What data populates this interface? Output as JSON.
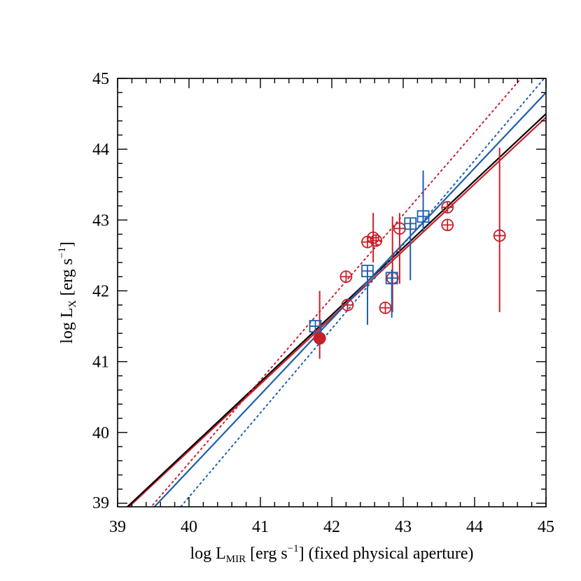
{
  "chart_data": {
    "type": "scatter",
    "xlabel": {
      "pre": "log L",
      "sub": "MIR",
      "mid": " [erg s",
      "sup": "−1",
      "post": "] (fixed physical aperture)"
    },
    "ylabel": {
      "pre": "log L",
      "sub": "X",
      "mid": " [erg s",
      "sup": "−1",
      "post": "]"
    },
    "xlim": [
      39,
      45
    ],
    "ylim": [
      38.95,
      45
    ],
    "xticks": [
      "39",
      "40",
      "41",
      "42",
      "43",
      "44",
      "45"
    ],
    "yticks": [
      "39",
      "40",
      "41",
      "42",
      "43",
      "44",
      "45"
    ],
    "grid": false,
    "colors": {
      "red": "#c8202a",
      "blue": "#1f5faa",
      "black": "#000000"
    },
    "series": [
      {
        "marker": "circle-plus",
        "color": "red",
        "points": [
          {
            "x": 42.2,
            "y": 42.2
          },
          {
            "x": 42.22,
            "y": 41.8
          },
          {
            "x": 42.5,
            "y": 42.69
          },
          {
            "x": 42.58,
            "y": 42.75,
            "yerr": [
              42.4,
              43.1
            ]
          },
          {
            "x": 42.62,
            "y": 42.71
          },
          {
            "x": 42.75,
            "y": 41.76
          },
          {
            "x": 42.85,
            "y": 42.18,
            "yerr": [
              41.7,
              43.05
            ]
          },
          {
            "x": 42.95,
            "y": 42.88,
            "yerr": [
              42.1,
              43.1
            ]
          },
          {
            "x": 43.62,
            "y": 43.18
          },
          {
            "x": 43.62,
            "y": 42.93
          },
          {
            "x": 44.35,
            "y": 42.78,
            "yerr": [
              41.7,
              44.02
            ]
          }
        ]
      },
      {
        "marker": "filled-circle",
        "color": "red",
        "points": [
          {
            "x": 41.83,
            "y": 41.33,
            "yerr": [
              41.04,
              42.0
            ]
          }
        ]
      },
      {
        "marker": "square-plus",
        "color": "blue",
        "points": [
          {
            "x": 41.77,
            "y": 41.5
          },
          {
            "x": 42.5,
            "y": 42.28,
            "yerr": [
              41.52,
              42.3
            ]
          },
          {
            "x": 42.84,
            "y": 42.18,
            "yerr": [
              41.62,
              42.3
            ]
          },
          {
            "x": 43.1,
            "y": 42.95,
            "yerr": [
              42.15,
              43.0
            ]
          },
          {
            "x": 43.28,
            "y": 43.05,
            "yerr": [
              42.83,
              43.7
            ]
          }
        ]
      }
    ],
    "lines": [
      {
        "color": "red",
        "style": "solid",
        "x1": 39,
        "y1": 38.8,
        "x2": 45,
        "y2": 44.45
      },
      {
        "color": "black",
        "style": "solid",
        "x1": 39,
        "y1": 38.82,
        "x2": 45,
        "y2": 44.5
      },
      {
        "color": "blue",
        "style": "solid",
        "x1": 39,
        "y1": 38.4,
        "x2": 45,
        "y2": 44.8
      },
      {
        "color": "red",
        "style": "dotted",
        "x1": 39,
        "y1": 38.4,
        "x2": 44.65,
        "y2": 45.0
      },
      {
        "color": "blue",
        "style": "dotted",
        "x1": 39,
        "y1": 37.9,
        "x2": 45,
        "y2": 45.03
      }
    ]
  }
}
